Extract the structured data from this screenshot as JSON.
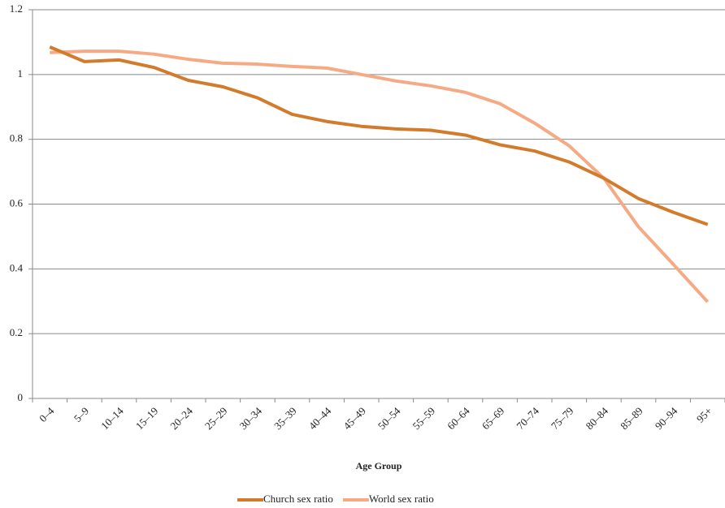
{
  "chart_data": {
    "type": "line",
    "x_label": "Age Group",
    "categories": [
      "0–4",
      "5–9",
      "10–14",
      "15–19",
      "20–24",
      "25–29",
      "30–34",
      "35–39",
      "40–44",
      "45–49",
      "50–54",
      "55–59",
      "60–64",
      "65–69",
      "70–74",
      "75–79",
      "80–84",
      "85–89",
      "90–94",
      "95+"
    ],
    "series": [
      {
        "name": "Church sex ratio",
        "color": "#d27b2c",
        "values": [
          1.085,
          1.04,
          1.045,
          1.022,
          0.982,
          0.962,
          0.928,
          0.877,
          0.855,
          0.84,
          0.832,
          0.828,
          0.813,
          0.783,
          0.764,
          0.73,
          0.68,
          0.617,
          0.575,
          0.537
        ]
      },
      {
        "name": "World sex ratio",
        "color": "#f6aa84",
        "values": [
          1.068,
          1.072,
          1.072,
          1.063,
          1.047,
          1.035,
          1.032,
          1.025,
          1.02,
          1.0,
          0.98,
          0.965,
          0.945,
          0.91,
          0.85,
          0.78,
          0.68,
          0.53,
          0.415,
          0.298
        ]
      }
    ],
    "ylim": [
      0,
      1.2
    ],
    "yticks": [
      0,
      0.2,
      0.4,
      0.6,
      0.8,
      1,
      1.2
    ],
    "grid": true
  }
}
